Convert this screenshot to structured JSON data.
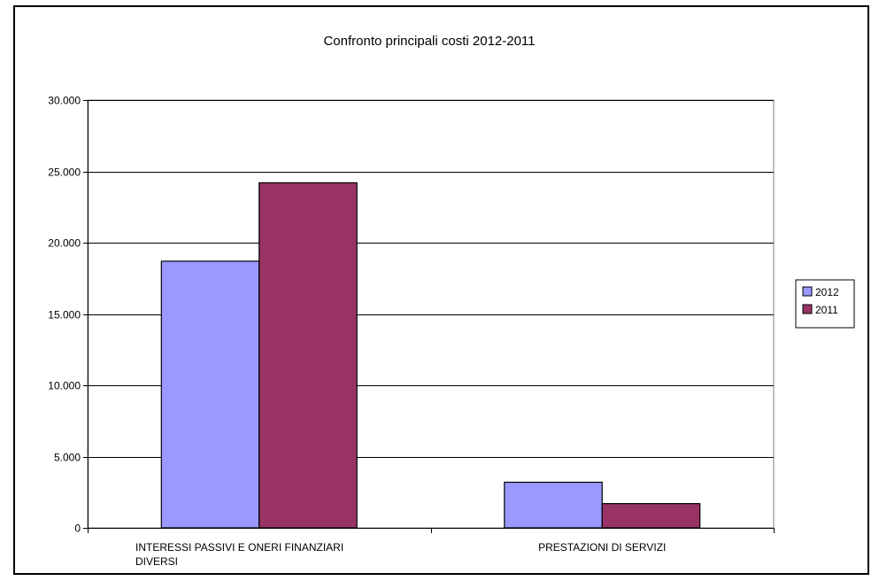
{
  "chart_data": {
    "type": "bar",
    "title": "Confronto principali costi 2012-2011",
    "xlabel": "",
    "ylabel": "",
    "categories": [
      [
        "INTERESSI PASSIVI E ONERI FINANZIARI",
        "DIVERSI"
      ],
      [
        "PRESTAZIONI DI SERVIZI"
      ]
    ],
    "series": [
      {
        "name": "2012",
        "color": "#9999ff",
        "values": [
          18700,
          3200
        ]
      },
      {
        "name": "2011",
        "color": "#993366",
        "values": [
          24200,
          1700
        ]
      }
    ],
    "ylim": [
      0,
      30000
    ],
    "yticks": [
      0,
      5000,
      10000,
      15000,
      20000,
      25000,
      30000
    ],
    "ytick_labels": [
      "0",
      "5.000",
      "10.000",
      "15.000",
      "20.000",
      "25.000",
      "30.000"
    ],
    "grid": true,
    "legend_position": "right"
  }
}
